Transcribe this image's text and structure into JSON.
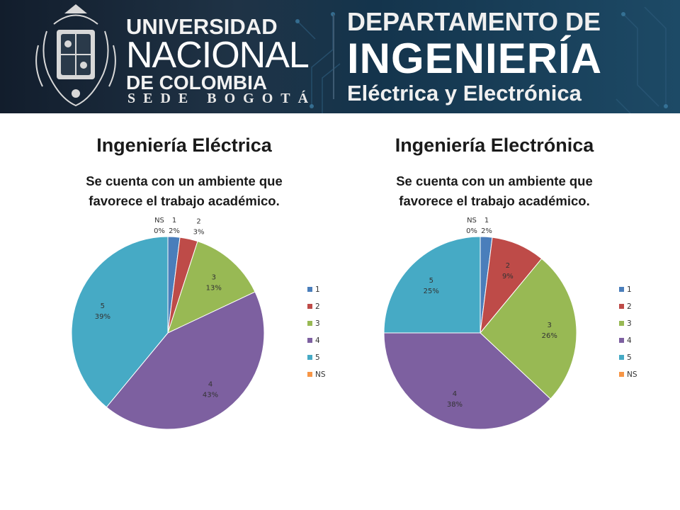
{
  "header": {
    "university": {
      "line1": "UNIVERSIDAD",
      "line2": "NACIONAL",
      "line3": "DE COLOMBIA",
      "sede": "SEDE BOGOTÁ"
    },
    "department": {
      "line1": "DEPARTAMENTO DE",
      "line2": "INGENIERÍA",
      "line3": "Eléctrica y Electrónica"
    }
  },
  "panels": [
    {
      "heading": "Ingeniería Eléctrica",
      "chart_title_line1": "Se cuenta con un ambiente que",
      "chart_title_line2": "favorece el trabajo académico."
    },
    {
      "heading": "Ingeniería Electrónica",
      "chart_title_line1": "Se cuenta con un ambiente que",
      "chart_title_line2": "favorece el trabajo académico."
    }
  ],
  "chart_data": [
    {
      "type": "pie",
      "title": "Se cuenta con un ambiente que favorece el trabajo académico.",
      "categories": [
        "1",
        "2",
        "3",
        "4",
        "5",
        "NS"
      ],
      "values": [
        2,
        3,
        13,
        43,
        39,
        0
      ],
      "value_labels": [
        "2%",
        "3%",
        "13%",
        "43%",
        "39%",
        "0%"
      ],
      "colors": [
        "#4a7ebb",
        "#be4b48",
        "#98b954",
        "#7d60a0",
        "#46aac5",
        "#f79646"
      ],
      "legend": [
        "1",
        "2",
        "3",
        "4",
        "5",
        "NS"
      ],
      "legend_position": "right"
    },
    {
      "type": "pie",
      "title": "Se cuenta con un ambiente que favorece el trabajo académico.",
      "categories": [
        "1",
        "2",
        "3",
        "4",
        "5",
        "NS"
      ],
      "values": [
        2,
        9,
        26,
        38,
        25,
        0
      ],
      "value_labels": [
        "2%",
        "9%",
        "26%",
        "38%",
        "25%",
        "0%"
      ],
      "colors": [
        "#4a7ebb",
        "#be4b48",
        "#98b954",
        "#7d60a0",
        "#46aac5",
        "#f79646"
      ],
      "legend": [
        "1",
        "2",
        "3",
        "4",
        "5",
        "NS"
      ],
      "legend_position": "right"
    }
  ]
}
